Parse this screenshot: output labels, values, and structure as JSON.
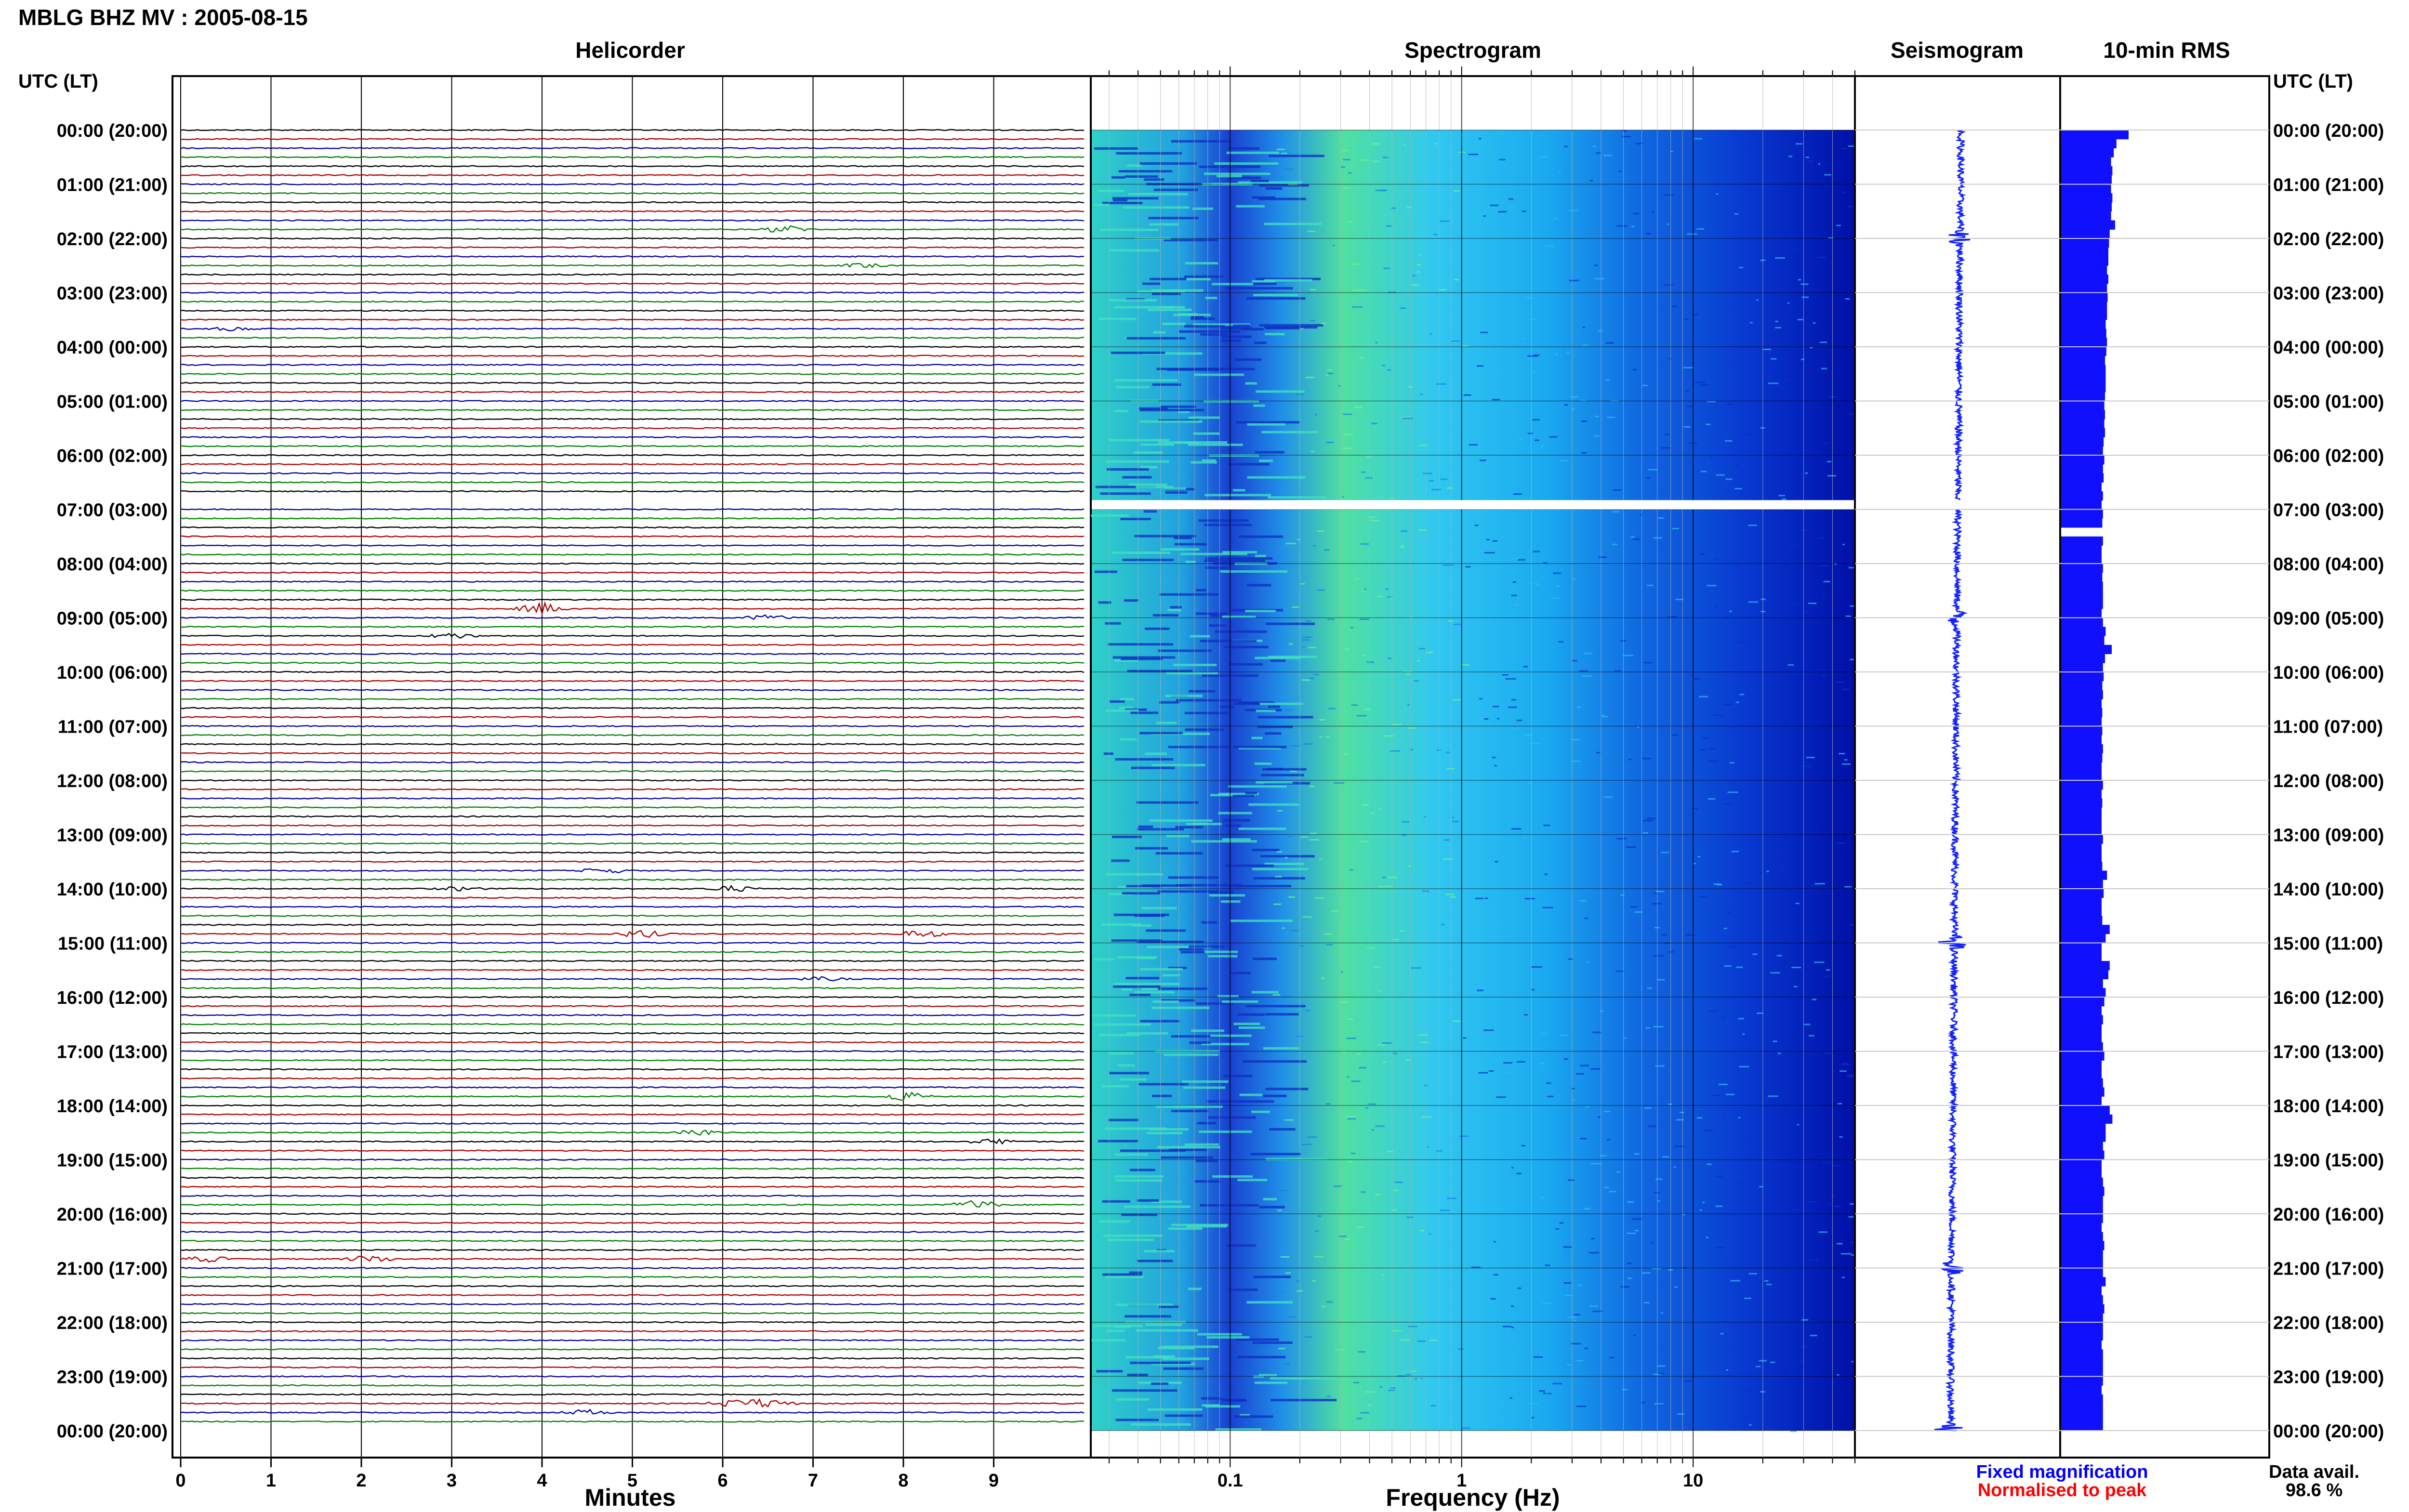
{
  "title": "MBLG BHZ MV : 2005-08-15",
  "panels": {
    "helicorder": "Helicorder",
    "spectrogram": "Spectrogram",
    "seismogram": "Seismogram",
    "rms": "10-min RMS"
  },
  "axis_header_left": "UTC (LT)",
  "axis_header_right": "UTC (LT)",
  "xlabel_helicorder": "Minutes",
  "xlabel_spectrogram": "Frequency (Hz)",
  "legend": {
    "fixed": "Fixed magnification",
    "normalised": "Normalised to peak"
  },
  "data_avail_label": "Data avail.",
  "data_avail_value": "98.6 %",
  "colors": {
    "trace_cycle": [
      "#000000",
      "#b00000",
      "#0000a0",
      "#008000"
    ],
    "rms_bar": "#1010ff",
    "legend_fixed": "#0000ff",
    "legend_normalised": "#ff0000",
    "spectrogram_low": "#0000b0",
    "spectrogram_mid": "#00c8ff",
    "spectrogram_high": "#a0ff60"
  },
  "chart_data": {
    "type": "heatmap",
    "hour_labels": [
      "00:00 (20:00)",
      "01:00 (21:00)",
      "02:00 (22:00)",
      "03:00 (23:00)",
      "04:00 (00:00)",
      "05:00 (01:00)",
      "06:00 (02:00)",
      "07:00 (03:00)",
      "08:00 (04:00)",
      "09:00 (05:00)",
      "10:00 (06:00)",
      "11:00 (07:00)",
      "12:00 (08:00)",
      "13:00 (09:00)",
      "14:00 (10:00)",
      "15:00 (11:00)",
      "16:00 (12:00)",
      "17:00 (13:00)",
      "18:00 (14:00)",
      "19:00 (15:00)",
      "20:00 (16:00)",
      "21:00 (17:00)",
      "22:00 (18:00)",
      "23:00 (19:00)",
      "00:00 (20:00)"
    ],
    "minutes_ticks": [
      "0",
      "1",
      "2",
      "3",
      "4",
      "5",
      "6",
      "7",
      "8",
      "9"
    ],
    "minutes_range": [
      0,
      10
    ],
    "frequency_ticks": [
      "0.1",
      "1",
      "10"
    ],
    "frequency_range": [
      0.025,
      50
    ],
    "frequency_scale": "log",
    "traces_per_hour": 6,
    "gap": {
      "start_hour": 6.83,
      "end_hour": 7.0
    },
    "events": [
      {
        "hour": 1.83,
        "minute": 6.7,
        "amp": 4
      },
      {
        "hour": 2.5,
        "minute": 7.6,
        "amp": 3
      },
      {
        "hour": 3.67,
        "minute": 0.6,
        "amp": 2
      },
      {
        "hour": 8.83,
        "minute": 4.0,
        "amp": 6
      },
      {
        "hour": 9.0,
        "minute": 6.5,
        "amp": 3
      },
      {
        "hour": 9.33,
        "minute": 3.0,
        "amp": 3
      },
      {
        "hour": 13.67,
        "minute": 4.7,
        "amp": 3
      },
      {
        "hour": 14.0,
        "minute": 6.1,
        "amp": 3
      },
      {
        "hour": 14.0,
        "minute": 3.1,
        "amp": 2
      },
      {
        "hour": 14.83,
        "minute": 5.1,
        "amp": 4
      },
      {
        "hour": 14.83,
        "minute": 8.2,
        "amp": 4
      },
      {
        "hour": 15.67,
        "minute": 7.1,
        "amp": 2
      },
      {
        "hour": 17.83,
        "minute": 8.0,
        "amp": 5
      },
      {
        "hour": 18.5,
        "minute": 5.7,
        "amp": 4
      },
      {
        "hour": 18.67,
        "minute": 9.0,
        "amp": 3
      },
      {
        "hour": 19.83,
        "minute": 8.8,
        "amp": 5
      },
      {
        "hour": 20.83,
        "minute": 2.1,
        "amp": 4
      },
      {
        "hour": 20.83,
        "minute": 0.3,
        "amp": 3
      },
      {
        "hour": 23.5,
        "minute": 6.5,
        "amp": 5
      },
      {
        "hour": 23.5,
        "minute": 6.1,
        "amp": 4
      },
      {
        "hour": 23.67,
        "minute": 4.5,
        "amp": 3
      }
    ],
    "rms": [
      1.0,
      0.82,
      0.78,
      0.74,
      0.76,
      0.75,
      0.74,
      0.76,
      0.75,
      0.74,
      0.8,
      0.72,
      0.71,
      0.7,
      0.7,
      0.68,
      0.7,
      0.68,
      0.69,
      0.68,
      0.68,
      0.66,
      0.67,
      0.68,
      0.67,
      0.65,
      0.66,
      0.66,
      0.66,
      0.65,
      0.64,
      0.65,
      0.64,
      0.65,
      0.63,
      0.62,
      0.64,
      0.62,
      0.63,
      0.6,
      0.62,
      0.6,
      0.62,
      0.61,
      0.0,
      0.62,
      0.6,
      0.6,
      0.62,
      0.61,
      0.62,
      0.62,
      0.62,
      0.6,
      0.62,
      0.66,
      0.64,
      0.75,
      0.65,
      0.62,
      0.63,
      0.61,
      0.62,
      0.6,
      0.61,
      0.6,
      0.61,
      0.6,
      0.62,
      0.61,
      0.6,
      0.6,
      0.62,
      0.6,
      0.61,
      0.6,
      0.6,
      0.6,
      0.62,
      0.6,
      0.6,
      0.61,
      0.68,
      0.62,
      0.63,
      0.6,
      0.6,
      0.61,
      0.72,
      0.66,
      0.6,
      0.6,
      0.72,
      0.7,
      0.62,
      0.66,
      0.64,
      0.6,
      0.62,
      0.6,
      0.6,
      0.62,
      0.64,
      0.6,
      0.6,
      0.62,
      0.64,
      0.6,
      0.72,
      0.76,
      0.66,
      0.66,
      0.62,
      0.64,
      0.6,
      0.6,
      0.62,
      0.64,
      0.62,
      0.62,
      0.62,
      0.6,
      0.62,
      0.64,
      0.62,
      0.62,
      0.62,
      0.66,
      0.6,
      0.62,
      0.64,
      0.62,
      0.62,
      0.62,
      0.6,
      0.62,
      0.62,
      0.62,
      0.62,
      0.6,
      0.62,
      0.62,
      0.62,
      0.62
    ],
    "seismogram_bursts_hours": [
      2.0,
      9.0,
      15.0,
      21.0,
      24.0
    ]
  }
}
